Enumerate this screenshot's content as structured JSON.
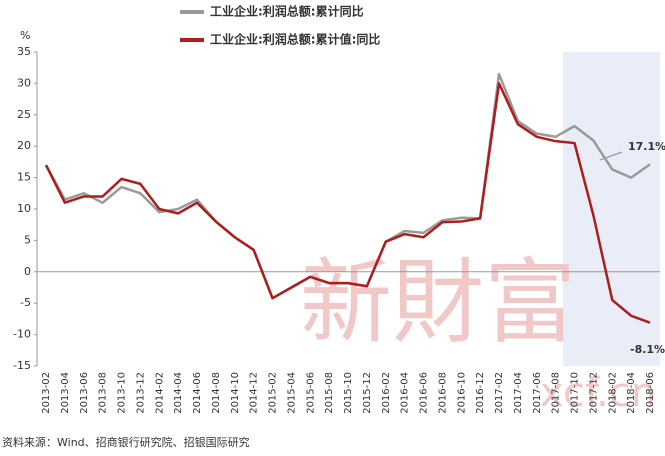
{
  "chart_data": {
    "type": "line",
    "y_unit": "%",
    "categories": [
      "2013-02",
      "2013-04",
      "2013-06",
      "2013-08",
      "2013-10",
      "2013-12",
      "2014-02",
      "2014-04",
      "2014-06",
      "2014-08",
      "2014-10",
      "2014-12",
      "2015-02",
      "2015-04",
      "2015-06",
      "2015-08",
      "2015-10",
      "2015-12",
      "2016-02",
      "2016-04",
      "2016-06",
      "2016-08",
      "2016-10",
      "2016-12",
      "2017-02",
      "2017-04",
      "2017-06",
      "2017-08",
      "2017-10",
      "2017-12",
      "2018-02",
      "2018-04",
      "2018-06"
    ],
    "series": [
      {
        "name": "工业企业:利润总额:累计同比",
        "color": "#9a9a9a",
        "values": [
          17,
          11.5,
          12.5,
          11,
          13.5,
          12.5,
          9.5,
          10,
          11.5,
          8,
          5.5,
          3.5,
          -4.2,
          -2.5,
          -0.8,
          -1.8,
          -1.8,
          -2.3,
          4.8,
          6.5,
          6.2,
          8.2,
          8.6,
          8.5,
          31.5,
          24,
          22,
          21.5,
          23.2,
          20.9,
          16.3,
          15,
          17.1
        ]
      },
      {
        "name": "工业企业:利润总额:累计值:同比",
        "color": "#b01c1c",
        "values": [
          17,
          11,
          12,
          12,
          14.8,
          14,
          10,
          9.3,
          11,
          8,
          5.5,
          3.5,
          -4.2,
          -2.5,
          -0.8,
          -1.8,
          -1.8,
          -2.3,
          4.8,
          6,
          5.5,
          7.9,
          8,
          8.5,
          30,
          23.5,
          21.5,
          20.8,
          20.5,
          9,
          -4.5,
          -7,
          -8.1
        ]
      }
    ],
    "annotations": [
      "17.1%",
      "-8.1%"
    ],
    "ylim": [
      -15,
      35
    ],
    "yticks": [
      -15,
      -10,
      -5,
      0,
      5,
      10,
      15,
      20,
      25,
      30,
      35
    ],
    "source": "资料来源：Wind、招商银行研究院、招银国际研究",
    "watermark": [
      "新財富",
      "xcf.cn"
    ]
  }
}
